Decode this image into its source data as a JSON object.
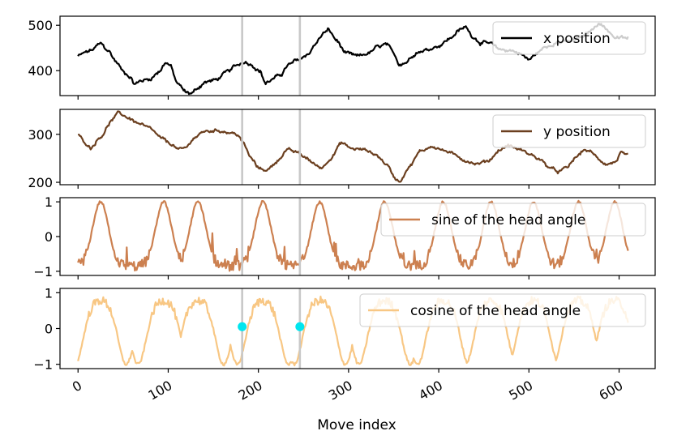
{
  "chart_data": {
    "type": "line",
    "xlabel": "Move index",
    "xlim": [
      -20,
      640
    ],
    "xticks": [
      0,
      100,
      200,
      300,
      400,
      500,
      600
    ],
    "xtick_labels": [
      "0",
      "100",
      "200",
      "300",
      "400",
      "500",
      "600"
    ],
    "vlines_x": [
      182,
      246
    ],
    "vline_color": "#c8c8c8",
    "marker_color": "#00e5ee",
    "subplots": [
      {
        "id": "x",
        "ylim": [
          345,
          520
        ],
        "yticks": [
          400,
          500
        ],
        "ytick_labels": [
          "400",
          "500"
        ],
        "color": "#000000",
        "legend": "x position",
        "legend_placement": "upper right",
        "key_points": [
          [
            0,
            432
          ],
          [
            8,
            440
          ],
          [
            15,
            445
          ],
          [
            25,
            460
          ],
          [
            33,
            445
          ],
          [
            43,
            418
          ],
          [
            50,
            398
          ],
          [
            57,
            388
          ],
          [
            63,
            370
          ],
          [
            70,
            378
          ],
          [
            80,
            382
          ],
          [
            90,
            398
          ],
          [
            97,
            418
          ],
          [
            102,
            412
          ],
          [
            110,
            372
          ],
          [
            120,
            352
          ],
          [
            126,
            350
          ],
          [
            133,
            362
          ],
          [
            140,
            374
          ],
          [
            153,
            380
          ],
          [
            166,
            398
          ],
          [
            176,
            412
          ],
          [
            184,
            420
          ],
          [
            192,
            414
          ],
          [
            202,
            398
          ],
          [
            208,
            372
          ],
          [
            215,
            380
          ],
          [
            225,
            392
          ],
          [
            233,
            412
          ],
          [
            243,
            423
          ],
          [
            255,
            436
          ],
          [
            263,
            458
          ],
          [
            272,
            482
          ],
          [
            278,
            490
          ],
          [
            286,
            468
          ],
          [
            297,
            438
          ],
          [
            310,
            432
          ],
          [
            322,
            438
          ],
          [
            332,
            452
          ],
          [
            342,
            458
          ],
          [
            350,
            438
          ],
          [
            356,
            415
          ],
          [
            363,
            418
          ],
          [
            375,
            440
          ],
          [
            385,
            445
          ],
          [
            400,
            455
          ],
          [
            412,
            470
          ],
          [
            422,
            488
          ],
          [
            430,
            496
          ],
          [
            438,
            475
          ],
          [
            446,
            462
          ],
          [
            457,
            460
          ],
          [
            466,
            448
          ],
          [
            474,
            445
          ],
          [
            480,
            445
          ],
          [
            490,
            438
          ],
          [
            500,
            424
          ],
          [
            510,
            440
          ],
          [
            518,
            452
          ],
          [
            530,
            462
          ],
          [
            545,
            464
          ],
          [
            560,
            475
          ],
          [
            570,
            490
          ],
          [
            578,
            506
          ],
          [
            588,
            488
          ],
          [
            596,
            472
          ]
        ],
        "noise": 4.5,
        "markers": []
      },
      {
        "id": "y",
        "ylim": [
          195,
          352
        ],
        "yticks": [
          200,
          300
        ],
        "ytick_labels": [
          "200",
          "300"
        ],
        "color": "#6b3f1f",
        "legend": "y position",
        "legend_placement": "upper right",
        "key_points": [
          [
            0,
            300
          ],
          [
            8,
            282
          ],
          [
            14,
            272
          ],
          [
            25,
            295
          ],
          [
            38,
            330
          ],
          [
            45,
            345
          ],
          [
            55,
            335
          ],
          [
            68,
            322
          ],
          [
            80,
            312
          ],
          [
            92,
            292
          ],
          [
            103,
            280
          ],
          [
            112,
            268
          ],
          [
            120,
            272
          ],
          [
            128,
            292
          ],
          [
            140,
            306
          ],
          [
            155,
            308
          ],
          [
            170,
            303
          ],
          [
            178,
            298
          ],
          [
            183,
            282
          ],
          [
            192,
            250
          ],
          [
            200,
            230
          ],
          [
            210,
            225
          ],
          [
            220,
            243
          ],
          [
            232,
            268
          ],
          [
            243,
            262
          ],
          [
            252,
            252
          ],
          [
            262,
            238
          ],
          [
            270,
            230
          ],
          [
            280,
            250
          ],
          [
            292,
            282
          ],
          [
            304,
            270
          ],
          [
            318,
            268
          ],
          [
            330,
            258
          ],
          [
            342,
            238
          ],
          [
            352,
            208
          ],
          [
            357,
            202
          ],
          [
            366,
            230
          ],
          [
            380,
            265
          ],
          [
            392,
            275
          ],
          [
            408,
            265
          ],
          [
            420,
            255
          ],
          [
            430,
            245
          ],
          [
            442,
            238
          ],
          [
            455,
            245
          ],
          [
            468,
            268
          ],
          [
            477,
            277
          ],
          [
            490,
            268
          ],
          [
            502,
            258
          ],
          [
            512,
            248
          ],
          [
            522,
            232
          ],
          [
            532,
            222
          ],
          [
            542,
            230
          ],
          [
            552,
            252
          ],
          [
            562,
            268
          ],
          [
            570,
            262
          ],
          [
            578,
            246
          ],
          [
            586,
            238
          ],
          [
            596,
            242
          ],
          [
            602,
            262
          ],
          [
            610,
            255
          ]
        ],
        "noise": 3.5,
        "markers": []
      },
      {
        "id": "sin",
        "ylim": [
          -1.12,
          1.12
        ],
        "yticks": [
          -1,
          0,
          1
        ],
        "ytick_labels": [
          "−1",
          "0",
          "1"
        ],
        "color": "#cc8050",
        "legend": "sine of the head angle",
        "legend_placement": "upper right",
        "wave": {
          "peaks": [
            25,
            95,
            133,
            205,
            268,
            340,
            405,
            458,
            505,
            555,
            595
          ],
          "shape": "peak"
        },
        "noise": 0.12,
        "markers": []
      },
      {
        "id": "cos",
        "ylim": [
          -1.12,
          1.12
        ],
        "yticks": [
          -1,
          0,
          1
        ],
        "ytick_labels": [
          "−1",
          "0",
          "1"
        ],
        "color": "#f8c784",
        "legend": "cosine of the head angle",
        "legend_placement": "upper right",
        "wave": {
          "peaks": [
            25,
            95,
            133,
            205,
            268,
            340,
            405,
            458,
            505,
            555,
            595
          ],
          "shape": "cosine"
        },
        "noise": 0.12,
        "markers": [
          [
            182,
            0.05
          ],
          [
            246,
            0.05
          ]
        ]
      }
    ]
  }
}
